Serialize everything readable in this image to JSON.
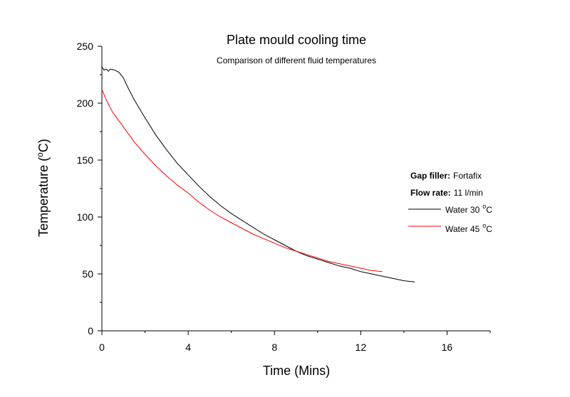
{
  "chart_data": {
    "type": "line",
    "title": "Plate mould cooling time",
    "subtitle": "Comparison of different fluid temperatures",
    "xlabel": "Time (Mins)",
    "ylabel_main": "Temperature (",
    "ylabel_sup": "o",
    "ylabel_tail": "C)",
    "xlim": [
      0,
      18
    ],
    "ylim": [
      0,
      250
    ],
    "x_ticks": [
      0,
      4,
      8,
      12,
      16
    ],
    "x_tick_labels": [
      "0",
      "4",
      "8",
      "12",
      "16"
    ],
    "y_ticks": [
      0,
      50,
      100,
      150,
      200,
      250
    ],
    "y_tick_labels": [
      "0",
      "50",
      "100",
      "150",
      "200",
      "250"
    ],
    "grid": false,
    "legend_position": "right",
    "annotations": [
      {
        "label": "Gap filler:",
        "value": "Fortafix"
      },
      {
        "label": "Flow rate:",
        "value": "11 l/min"
      }
    ],
    "series": [
      {
        "name": "Water 30",
        "name_sup": "o",
        "name_tail": "C",
        "color": "#000000",
        "x": [
          0,
          0.1,
          0.2,
          0.3,
          0.4,
          0.6,
          0.8,
          1.0,
          1.2,
          1.5,
          2.0,
          2.5,
          3.0,
          3.5,
          4.0,
          4.5,
          5.0,
          5.5,
          6.0,
          6.5,
          7.0,
          7.5,
          8.0,
          8.5,
          9.0,
          9.5,
          10.0,
          10.5,
          11.0,
          11.5,
          12.0,
          12.5,
          13.0,
          13.5,
          14.0,
          14.5
        ],
        "y": [
          232,
          229,
          230,
          228,
          230,
          229,
          227,
          222,
          214,
          203,
          187,
          172,
          159,
          147,
          137,
          127,
          118,
          110,
          103,
          97,
          91,
          85,
          80,
          75,
          70,
          66,
          63,
          60,
          57,
          55,
          52,
          50,
          48,
          46,
          44,
          43
        ]
      },
      {
        "name": "Water 45",
        "name_sup": "o",
        "name_tail": "C",
        "color": "#ff0000",
        "x": [
          0,
          0.2,
          0.5,
          1.0,
          1.5,
          2.0,
          2.5,
          3.0,
          3.5,
          4.0,
          4.5,
          5.0,
          5.5,
          6.0,
          6.5,
          7.0,
          7.5,
          8.0,
          8.5,
          9.0,
          9.5,
          10.0,
          10.5,
          11.0,
          11.5,
          12.0,
          12.5,
          13.0
        ],
        "y": [
          212,
          203,
          192,
          179,
          166,
          155,
          145,
          136,
          128,
          121,
          113,
          106,
          100,
          95,
          90,
          85,
          81,
          77,
          73,
          70,
          67,
          64,
          61,
          59,
          57,
          55,
          53,
          52
        ]
      }
    ]
  }
}
